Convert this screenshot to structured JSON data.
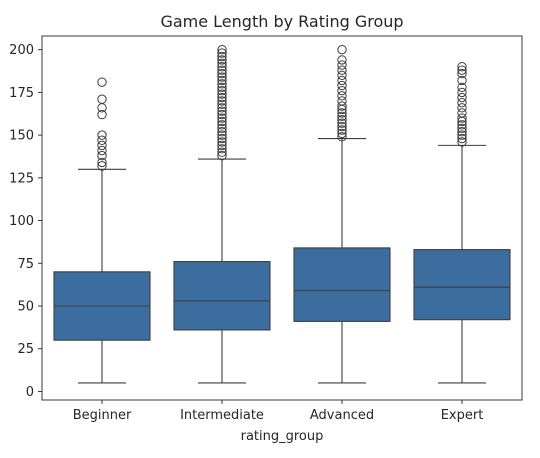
{
  "chart_data": {
    "type": "box",
    "title": "Game Length by Rating Group",
    "xlabel": "rating_group",
    "ylabel": "",
    "ylim": [
      -5,
      208
    ],
    "yticks": [
      0,
      25,
      50,
      75,
      100,
      125,
      150,
      175,
      200
    ],
    "grid": false,
    "colors": {
      "box": "#3b6e9f",
      "edge": "#3d3d3d"
    },
    "categories": [
      "Beginner",
      "Intermediate",
      "Advanced",
      "Expert"
    ],
    "boxes": [
      {
        "category": "Beginner",
        "whisker_low": 5,
        "q1": 30,
        "median": 50,
        "q3": 70,
        "whisker_high": 130,
        "outliers": [
          132,
          134,
          138,
          141,
          144,
          147,
          150,
          162,
          166,
          171,
          181
        ]
      },
      {
        "category": "Intermediate",
        "whisker_low": 5,
        "q1": 36,
        "median": 53,
        "q3": 76,
        "whisker_high": 136,
        "outliers": [
          138,
          140,
          142,
          144,
          146,
          148,
          150,
          152,
          154,
          156,
          158,
          160,
          162,
          164,
          166,
          168,
          170,
          172,
          174,
          176,
          178,
          180,
          182,
          184,
          186,
          188,
          190,
          192,
          194,
          196,
          198,
          200
        ]
      },
      {
        "category": "Advanced",
        "whisker_low": 5,
        "q1": 41,
        "median": 59,
        "q3": 84,
        "whisker_high": 148,
        "outliers": [
          149,
          151,
          153,
          155,
          157,
          159,
          161,
          163,
          165,
          167,
          170,
          173,
          176,
          179,
          182,
          185,
          188,
          191,
          194,
          200
        ]
      },
      {
        "category": "Expert",
        "whisker_low": 5,
        "q1": 42,
        "median": 61,
        "q3": 83,
        "whisker_high": 144,
        "outliers": [
          146,
          148,
          150,
          152,
          154,
          156,
          158,
          160,
          163,
          166,
          169,
          172,
          175,
          178,
          182,
          186,
          188,
          190
        ]
      }
    ]
  }
}
